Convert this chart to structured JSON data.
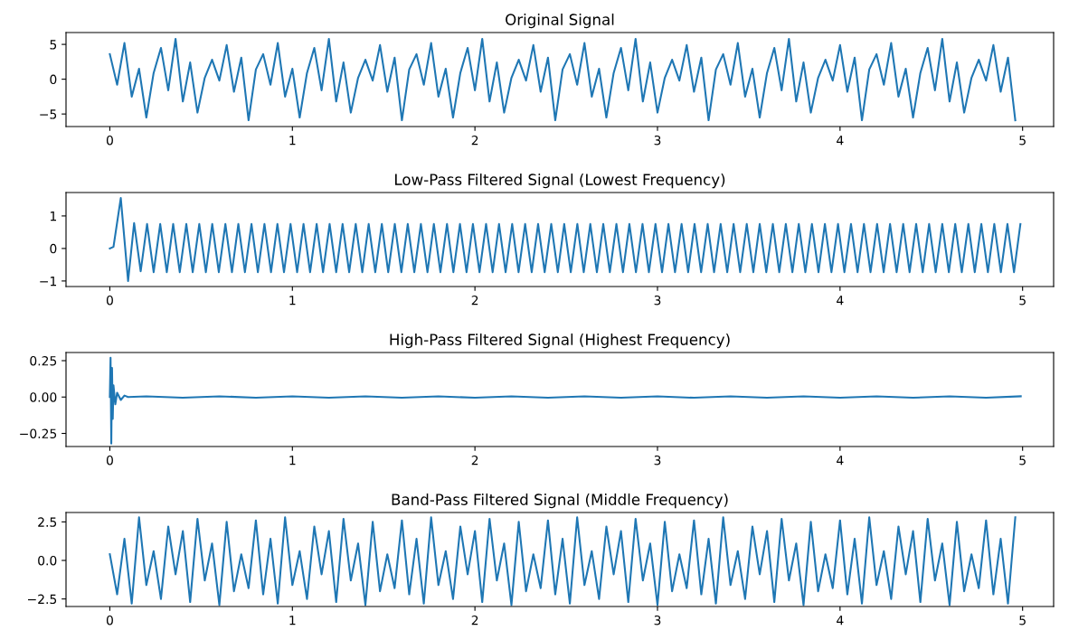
{
  "chart_data": [
    {
      "type": "line",
      "title": "Original Signal",
      "xlim": [
        -0.24,
        5.17
      ],
      "xticks": [
        0,
        1,
        2,
        3,
        4,
        5
      ],
      "ylim": [
        -6.8,
        6.7
      ],
      "yticks": [
        {
          "value": -5,
          "label": "−5"
        },
        0,
        5
      ],
      "grid": false,
      "legend": false,
      "x": [
        0,
        0.04,
        0.08,
        0.12,
        0.16,
        0.2,
        0.24,
        0.28,
        0.32,
        0.36,
        0.4,
        0.44,
        0.48,
        0.52,
        0.56,
        0.6,
        0.64,
        0.68,
        0.72,
        0.76,
        0.8,
        0.84,
        0.88,
        0.92,
        0.96,
        1,
        1.04,
        1.08,
        1.12,
        1.16,
        1.2,
        1.24,
        1.28,
        1.32,
        1.36,
        1.4,
        1.44,
        1.48,
        1.52,
        1.56,
        1.6,
        1.64,
        1.68,
        1.72,
        1.76,
        1.8,
        1.84,
        1.88,
        1.92,
        1.96,
        2,
        2.04,
        2.08,
        2.12,
        2.16,
        2.2,
        2.24,
        2.28,
        2.32,
        2.36,
        2.4,
        2.44,
        2.48,
        2.52,
        2.56,
        2.6,
        2.64,
        2.68,
        2.72,
        2.76,
        2.8,
        2.84,
        2.88,
        2.92,
        2.96,
        3,
        3.04,
        3.08,
        3.12,
        3.16,
        3.2,
        3.24,
        3.28,
        3.32,
        3.36,
        3.4,
        3.44,
        3.48,
        3.52,
        3.56,
        3.6,
        3.64,
        3.68,
        3.72,
        3.76,
        3.8,
        3.84,
        3.88,
        3.92,
        3.96,
        4,
        4.04,
        4.08,
        4.12,
        4.16,
        4.2,
        4.24,
        4.28,
        4.32,
        4.36,
        4.4,
        4.44,
        4.48,
        4.52,
        4.56,
        4.6,
        4.64,
        4.68,
        4.72,
        4.76,
        4.8,
        4.84,
        4.88,
        4.92,
        4.96
      ],
      "series": [
        {
          "color": "#1f77b4",
          "values": [
            3.6,
            -0.8,
            5.2,
            -2.5,
            1.5,
            -5.5,
            0.9,
            4.5,
            -1.6,
            5.8,
            -3.2,
            2.4,
            -4.8,
            0.2,
            2.8,
            -0.2,
            4.9,
            -1.8,
            3.1,
            -5.9,
            1.4,
            3.6,
            -0.8,
            5.2,
            -2.5,
            1.5,
            -5.5,
            0.9,
            4.5,
            -1.6,
            5.8,
            -3.2,
            2.4,
            -4.8,
            0.2,
            2.8,
            -0.2,
            4.9,
            -1.8,
            3.1,
            -5.9,
            1.4,
            3.6,
            -0.8,
            5.2,
            -2.5,
            1.5,
            -5.5,
            0.9,
            4.5,
            -1.6,
            5.8,
            -3.2,
            2.4,
            -4.8,
            0.2,
            2.8,
            -0.2,
            4.9,
            -1.8,
            3.1,
            -5.9,
            1.4,
            3.6,
            -0.8,
            5.2,
            -2.5,
            1.5,
            -5.5,
            0.9,
            4.5,
            -1.6,
            5.8,
            -3.2,
            2.4,
            -4.8,
            0.2,
            2.8,
            -0.2,
            4.9,
            -1.8,
            3.1,
            -5.9,
            1.4,
            3.6,
            -0.8,
            5.2,
            -2.5,
            1.5,
            -5.5,
            0.9,
            4.5,
            -1.6,
            5.8,
            -3.2,
            2.4,
            -4.8,
            0.2,
            2.8,
            -0.2,
            4.9,
            -1.8,
            3.1,
            -5.9,
            1.4,
            3.6,
            -0.8,
            5.2,
            -2.5,
            1.5,
            -5.5,
            0.9,
            4.5,
            -1.6,
            5.8,
            -3.2,
            2.4,
            -4.8,
            0.2,
            2.8,
            -0.2,
            4.9,
            -1.8,
            3.1,
            -5.9
          ]
        }
      ]
    },
    {
      "type": "line",
      "title": "Low-Pass Filtered Signal (Lowest Frequency)",
      "xlim": [
        -0.24,
        5.17
      ],
      "xticks": [
        0,
        1,
        2,
        3,
        4,
        5
      ],
      "ylim": [
        -1.17,
        1.72
      ],
      "yticks": [
        {
          "value": -1,
          "label": "−1"
        },
        0,
        1
      ],
      "grid": false,
      "legend": false,
      "x": [
        0,
        0.02,
        0.06,
        0.1,
        0.133,
        0.169,
        0.204,
        0.24,
        0.276,
        0.312,
        0.347,
        0.383,
        0.419,
        0.454,
        0.49,
        0.526,
        0.561,
        0.597,
        0.633,
        0.669,
        0.704,
        0.74,
        0.776,
        0.811,
        0.847,
        0.883,
        0.918,
        0.954,
        0.99,
        1.026,
        1.061,
        1.097,
        1.133,
        1.168,
        1.204,
        1.24,
        1.275,
        1.311,
        1.347,
        1.383,
        1.418,
        1.454,
        1.49,
        1.525,
        1.561,
        1.597,
        1.632,
        1.668,
        1.704,
        1.74,
        1.775,
        1.811,
        1.847,
        1.882,
        1.918,
        1.954,
        1.989,
        2.025,
        2.061,
        2.097,
        2.132,
        2.168,
        2.204,
        2.239,
        2.275,
        2.311,
        2.346,
        2.382,
        2.418,
        2.454,
        2.489,
        2.525,
        2.561,
        2.596,
        2.632,
        2.668,
        2.703,
        2.739,
        2.775,
        2.811,
        2.846,
        2.882,
        2.918,
        2.953,
        2.989,
        3.025,
        3.06,
        3.096,
        3.132,
        3.168,
        3.203,
        3.239,
        3.275,
        3.31,
        3.346,
        3.382,
        3.417,
        3.453,
        3.489,
        3.525,
        3.56,
        3.596,
        3.632,
        3.667,
        3.703,
        3.739,
        3.774,
        3.81,
        3.846,
        3.882,
        3.917,
        3.953,
        3.989,
        4.024,
        4.06,
        4.096,
        4.131,
        4.167,
        4.203,
        4.239,
        4.274,
        4.31,
        4.346,
        4.381,
        4.417,
        4.453,
        4.488,
        4.524,
        4.56,
        4.596,
        4.631,
        4.667,
        4.703,
        4.738,
        4.774,
        4.81,
        4.845,
        4.881,
        4.917,
        4.953,
        4.988
      ],
      "series": [
        {
          "color": "#1f77b4",
          "values": [
            0,
            0.05,
            1.55,
            -1.0,
            0.78,
            -0.7,
            0.75,
            -0.73,
            0.75,
            -0.73,
            0.75,
            -0.73,
            0.75,
            -0.73,
            0.75,
            -0.73,
            0.75,
            -0.73,
            0.75,
            -0.73,
            0.75,
            -0.73,
            0.75,
            -0.73,
            0.75,
            -0.73,
            0.75,
            -0.73,
            0.75,
            -0.73,
            0.75,
            -0.73,
            0.75,
            -0.73,
            0.75,
            -0.73,
            0.75,
            -0.73,
            0.75,
            -0.73,
            0.75,
            -0.73,
            0.75,
            -0.73,
            0.75,
            -0.73,
            0.75,
            -0.73,
            0.75,
            -0.73,
            0.75,
            -0.73,
            0.75,
            -0.73,
            0.75,
            -0.73,
            0.75,
            -0.73,
            0.75,
            -0.73,
            0.75,
            -0.73,
            0.75,
            -0.73,
            0.75,
            -0.73,
            0.75,
            -0.73,
            0.75,
            -0.73,
            0.75,
            -0.73,
            0.75,
            -0.73,
            0.75,
            -0.73,
            0.75,
            -0.73,
            0.75,
            -0.73,
            0.75,
            -0.73,
            0.75,
            -0.73,
            0.75,
            -0.73,
            0.75,
            -0.73,
            0.75,
            -0.73,
            0.75,
            -0.73,
            0.75,
            -0.73,
            0.75,
            -0.73,
            0.75,
            -0.73,
            0.75,
            -0.73,
            0.75,
            -0.73,
            0.75,
            -0.73,
            0.75,
            -0.73,
            0.75,
            -0.73,
            0.75,
            -0.73,
            0.75,
            -0.73,
            0.75,
            -0.73,
            0.75,
            -0.73,
            0.75,
            -0.73,
            0.75,
            -0.73,
            0.75,
            -0.73,
            0.75,
            -0.73,
            0.75,
            -0.73,
            0.75,
            -0.73,
            0.75,
            -0.73,
            0.75,
            -0.73,
            0.75,
            -0.73,
            0.75,
            -0.73,
            0.75,
            -0.73,
            0.75,
            -0.73,
            0.75
          ]
        }
      ]
    },
    {
      "type": "line",
      "title": "High-Pass Filtered Signal (Highest Frequency)",
      "xlim": [
        -0.24,
        5.17
      ],
      "xticks": [
        0,
        1,
        2,
        3,
        4,
        5
      ],
      "ylim": [
        -0.34,
        0.306
      ],
      "yticks": [
        {
          "value": -0.25,
          "label": "−0.25"
        },
        {
          "value": 0,
          "label": "0.00"
        },
        {
          "value": 0.25,
          "label": "0.25"
        }
      ],
      "grid": false,
      "legend": false,
      "x": [
        0,
        0.004,
        0.008,
        0.012,
        0.016,
        0.02,
        0.03,
        0.04,
        0.06,
        0.08,
        0.1,
        0.2,
        0.4,
        0.6,
        0.8,
        1,
        1.2,
        1.4,
        1.6,
        1.8,
        2,
        2.2,
        2.4,
        2.6,
        2.8,
        3,
        3.2,
        3.4,
        3.6,
        3.8,
        4,
        4.2,
        4.4,
        4.6,
        4.8,
        4.99
      ],
      "series": [
        {
          "color": "#1f77b4",
          "values": [
            0,
            0.27,
            -0.32,
            0.2,
            -0.15,
            0.08,
            -0.05,
            0.03,
            -0.02,
            0.01,
            0,
            0.005,
            -0.005,
            0.005,
            -0.005,
            0.005,
            -0.005,
            0.005,
            -0.005,
            0.005,
            -0.005,
            0.005,
            -0.005,
            0.005,
            -0.005,
            0.005,
            -0.005,
            0.005,
            -0.005,
            0.005,
            -0.005,
            0.005,
            -0.005,
            0.005,
            -0.005,
            0.005
          ]
        }
      ]
    },
    {
      "type": "line",
      "title": "Band-Pass Filtered Signal (Middle Frequency)",
      "xlim": [
        -0.24,
        5.17
      ],
      "xticks": [
        0,
        1,
        2,
        3,
        4,
        5
      ],
      "ylim": [
        -2.99,
        3.11
      ],
      "yticks": [
        {
          "value": -2.5,
          "label": "−2.5"
        },
        {
          "value": 0,
          "label": "0.0"
        },
        {
          "value": 2.5,
          "label": "2.5"
        }
      ],
      "grid": false,
      "legend": false,
      "x": [
        0,
        0.04,
        0.08,
        0.12,
        0.16,
        0.2,
        0.24,
        0.28,
        0.32,
        0.36,
        0.4,
        0.44,
        0.48,
        0.52,
        0.56,
        0.6,
        0.64,
        0.68,
        0.72,
        0.76,
        0.8,
        0.84,
        0.88,
        0.92,
        0.96,
        1,
        1.04,
        1.08,
        1.12,
        1.16,
        1.2,
        1.24,
        1.28,
        1.32,
        1.36,
        1.4,
        1.44,
        1.48,
        1.52,
        1.56,
        1.6,
        1.64,
        1.68,
        1.72,
        1.76,
        1.8,
        1.84,
        1.88,
        1.92,
        1.96,
        2,
        2.04,
        2.08,
        2.12,
        2.16,
        2.2,
        2.24,
        2.28,
        2.32,
        2.36,
        2.4,
        2.44,
        2.48,
        2.52,
        2.56,
        2.6,
        2.64,
        2.68,
        2.72,
        2.76,
        2.8,
        2.84,
        2.88,
        2.92,
        2.96,
        3,
        3.04,
        3.08,
        3.12,
        3.16,
        3.2,
        3.24,
        3.28,
        3.32,
        3.36,
        3.4,
        3.44,
        3.48,
        3.52,
        3.56,
        3.6,
        3.64,
        3.68,
        3.72,
        3.76,
        3.8,
        3.84,
        3.88,
        3.92,
        3.96,
        4,
        4.04,
        4.08,
        4.12,
        4.16,
        4.2,
        4.24,
        4.28,
        4.32,
        4.36,
        4.4,
        4.44,
        4.48,
        4.52,
        4.56,
        4.6,
        4.64,
        4.68,
        4.72,
        4.76,
        4.8,
        4.84,
        4.88,
        4.92,
        4.96
      ],
      "series": [
        {
          "color": "#1f77b4",
          "values": [
            0.4,
            -2.2,
            1.4,
            -2.8,
            2.8,
            -1.6,
            0.6,
            -2.5,
            2.2,
            -0.9,
            1.9,
            -2.7,
            2.7,
            -1.3,
            1.1,
            -2.9,
            2.5,
            -2.0,
            0.4,
            -1.8,
            2.6,
            -2.2,
            1.4,
            -2.8,
            2.8,
            -1.6,
            0.6,
            -2.5,
            2.2,
            -0.9,
            1.9,
            -2.7,
            2.7,
            -1.3,
            1.1,
            -2.9,
            2.5,
            -2.0,
            0.4,
            -1.8,
            2.6,
            -2.2,
            1.4,
            -2.8,
            2.8,
            -1.6,
            0.6,
            -2.5,
            2.2,
            -0.9,
            1.9,
            -2.7,
            2.7,
            -1.3,
            1.1,
            -2.9,
            2.5,
            -2.0,
            0.4,
            -1.8,
            2.6,
            -2.2,
            1.4,
            -2.8,
            2.8,
            -1.6,
            0.6,
            -2.5,
            2.2,
            -0.9,
            1.9,
            -2.7,
            2.7,
            -1.3,
            1.1,
            -2.9,
            2.5,
            -2.0,
            0.4,
            -1.8,
            2.6,
            -2.2,
            1.4,
            -2.8,
            2.8,
            -1.6,
            0.6,
            -2.5,
            2.2,
            -0.9,
            1.9,
            -2.7,
            2.7,
            -1.3,
            1.1,
            -2.9,
            2.5,
            -2.0,
            0.4,
            -1.8,
            2.6,
            -2.2,
            1.4,
            -2.8,
            2.8,
            -1.6,
            0.6,
            -2.5,
            2.2,
            -0.9,
            1.9,
            -2.7,
            2.7,
            -1.3,
            1.1,
            -2.9,
            2.5,
            -2.0,
            0.4,
            -1.8,
            2.6,
            -2.2,
            1.4,
            -2.8,
            2.8
          ]
        }
      ]
    }
  ]
}
